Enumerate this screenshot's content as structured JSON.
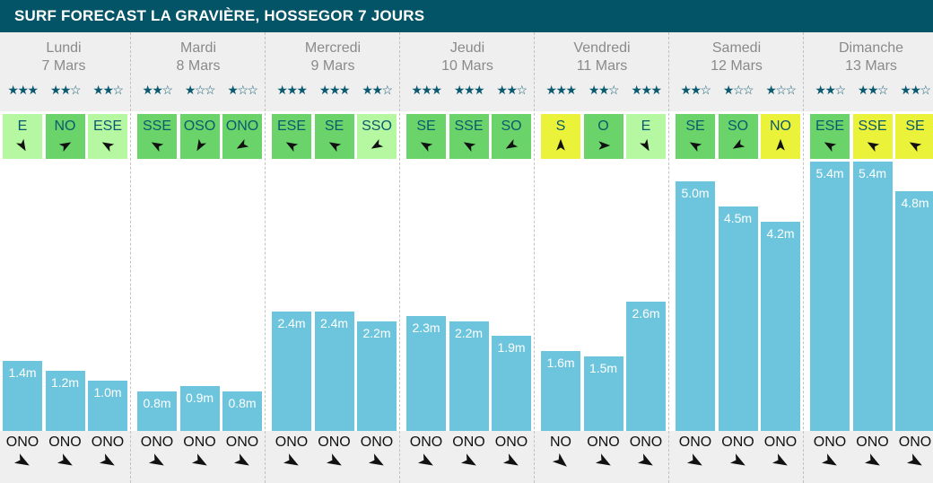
{
  "title": "SURF FORECAST LA GRAVIÈRE, HOSSEGOR 7 JOURS",
  "colors": {
    "header_bg": "#035466",
    "bar": "#6cc5dd",
    "wind_green": "#6ad46a",
    "wind_light_green": "#b6f7a1",
    "wind_yellow": "#eaf33a",
    "star": "#0c5a70"
  },
  "days": [
    {
      "name": "Lundi",
      "date": "7 Mars"
    },
    {
      "name": "Mardi",
      "date": "8 Mars"
    },
    {
      "name": "Mercredi",
      "date": "9 Mars"
    },
    {
      "name": "Jeudi",
      "date": "10 Mars"
    },
    {
      "name": "Vendredi",
      "date": "11 Mars"
    },
    {
      "name": "Samedi",
      "date": "12 Mars"
    },
    {
      "name": "Dimanche",
      "date": "13 Mars"
    }
  ],
  "ratings": [
    "★★★",
    "★★☆",
    "★★☆",
    "★★☆",
    "★☆☆",
    "★☆☆",
    "★★★",
    "★★★",
    "★★☆",
    "★★★",
    "★★★",
    "★★☆",
    "★★★",
    "★★☆",
    "★★★",
    "★★☆",
    "★☆☆",
    "★☆☆",
    "★★☆",
    "★★☆",
    "★★☆"
  ],
  "wind": [
    {
      "dir": "E",
      "color": "light-green",
      "icon": "arrow-icon"
    },
    {
      "dir": "NO",
      "color": "green",
      "icon": "arrow-icon"
    },
    {
      "dir": "ESE",
      "color": "light-green",
      "icon": "arrow-icon"
    },
    {
      "dir": "SSE",
      "color": "green",
      "icon": "arrow-icon"
    },
    {
      "dir": "OSO",
      "color": "green",
      "icon": "arrow-icon"
    },
    {
      "dir": "ONO",
      "color": "green",
      "icon": "arrow-icon"
    },
    {
      "dir": "ESE",
      "color": "green",
      "icon": "arrow-icon"
    },
    {
      "dir": "SE",
      "color": "green",
      "icon": "arrow-icon"
    },
    {
      "dir": "SSO",
      "color": "light-green",
      "icon": "arrow-icon"
    },
    {
      "dir": "SE",
      "color": "green",
      "icon": "arrow-icon"
    },
    {
      "dir": "SSE",
      "color": "green",
      "icon": "arrow-icon"
    },
    {
      "dir": "SO",
      "color": "green",
      "icon": "arrow-icon"
    },
    {
      "dir": "S",
      "color": "yellow",
      "icon": "arrow-icon"
    },
    {
      "dir": "O",
      "color": "green",
      "icon": "arrow-icon"
    },
    {
      "dir": "E",
      "color": "light-green",
      "icon": "arrow-icon"
    },
    {
      "dir": "SE",
      "color": "green",
      "icon": "arrow-icon"
    },
    {
      "dir": "SO",
      "color": "green",
      "icon": "arrow-icon"
    },
    {
      "dir": "NO",
      "color": "yellow",
      "icon": "arrow-icon"
    },
    {
      "dir": "ESE",
      "color": "green",
      "icon": "arrow-icon"
    },
    {
      "dir": "SSE",
      "color": "yellow",
      "icon": "arrow-icon"
    },
    {
      "dir": "SE",
      "color": "yellow",
      "icon": "arrow-icon"
    }
  ],
  "swell_dirs": [
    "ONO",
    "ONO",
    "ONO",
    "ONO",
    "ONO",
    "ONO",
    "ONO",
    "ONO",
    "ONO",
    "ONO",
    "ONO",
    "ONO",
    "NO",
    "ONO",
    "ONO",
    "ONO",
    "ONO",
    "ONO",
    "ONO",
    "ONO",
    "ONO"
  ],
  "chart_data": {
    "type": "bar",
    "unit": "m",
    "labels": [
      "1.4m",
      "1.2m",
      "1.0m",
      "0.8m",
      "0.9m",
      "0.8m",
      "2.4m",
      "2.4m",
      "2.2m",
      "2.3m",
      "2.2m",
      "1.9m",
      "1.6m",
      "1.5m",
      "2.6m",
      "5.0m",
      "4.5m",
      "4.2m",
      "5.4m",
      "5.4m",
      "4.8m"
    ],
    "values": [
      1.4,
      1.2,
      1.0,
      0.8,
      0.9,
      0.8,
      2.4,
      2.4,
      2.2,
      2.3,
      2.2,
      1.9,
      1.6,
      1.5,
      2.6,
      5.0,
      4.5,
      4.2,
      5.4,
      5.4,
      4.8
    ],
    "ylim": [
      0,
      5.7
    ]
  }
}
